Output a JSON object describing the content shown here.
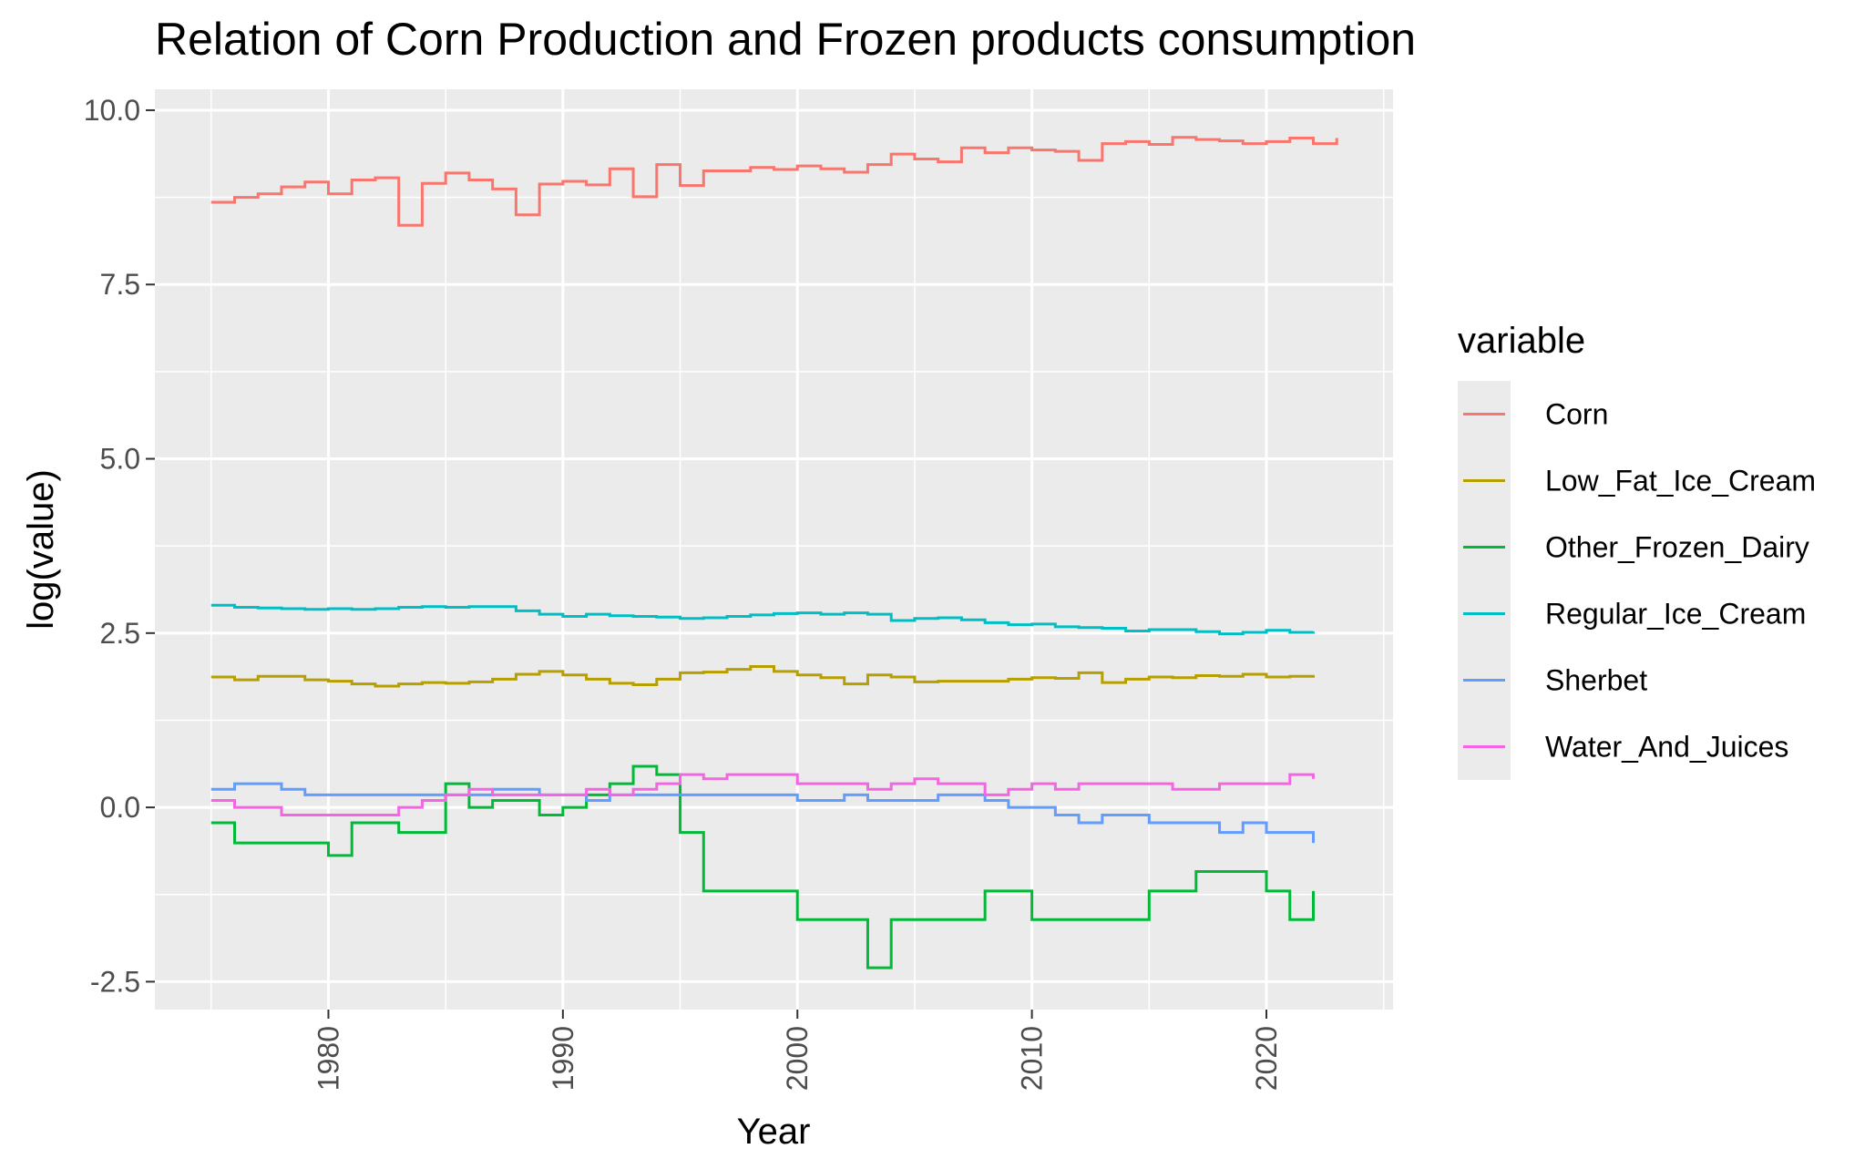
{
  "chart_data": {
    "type": "line",
    "step": true,
    "title": "Relation of Corn Production and Frozen products consumption",
    "xlabel": "Year",
    "ylabel": "log(value)",
    "xlim": [
      1972.6,
      2025.4
    ],
    "ylim": [
      -2.9,
      10.3
    ],
    "x_ticks": [
      1980,
      1990,
      2000,
      2010,
      2020
    ],
    "x_tick_labels": [
      "1980",
      "1990",
      "2000",
      "2010",
      "2020"
    ],
    "y_ticks": [
      10.0,
      7.5,
      5.0,
      2.5,
      0.0,
      -2.5
    ],
    "y_tick_labels": [
      "10.0",
      "7.5",
      "5.0",
      "2.5",
      "0.0",
      "-2.5"
    ],
    "grid": true,
    "legend_title": "variable",
    "legend_position": "right",
    "x": [
      1975,
      1976,
      1977,
      1978,
      1979,
      1980,
      1981,
      1982,
      1983,
      1984,
      1985,
      1986,
      1987,
      1988,
      1989,
      1990,
      1991,
      1992,
      1993,
      1994,
      1995,
      1996,
      1997,
      1998,
      1999,
      2000,
      2001,
      2002,
      2003,
      2004,
      2005,
      2006,
      2007,
      2008,
      2009,
      2010,
      2011,
      2012,
      2013,
      2014,
      2015,
      2016,
      2017,
      2018,
      2019,
      2020,
      2021,
      2022
    ],
    "series": [
      {
        "name": "Corn",
        "color": "#F8766D",
        "x": [
          1975,
          1976,
          1977,
          1978,
          1979,
          1980,
          1981,
          1982,
          1983,
          1984,
          1985,
          1986,
          1987,
          1988,
          1989,
          1990,
          1991,
          1992,
          1993,
          1994,
          1995,
          1996,
          1997,
          1998,
          1999,
          2000,
          2001,
          2002,
          2003,
          2004,
          2005,
          2006,
          2007,
          2008,
          2009,
          2010,
          2011,
          2012,
          2013,
          2014,
          2015,
          2016,
          2017,
          2018,
          2019,
          2020,
          2021,
          2022,
          2023
        ],
        "values": [
          8.68,
          8.75,
          8.8,
          8.9,
          8.97,
          8.8,
          9.0,
          9.03,
          8.35,
          8.95,
          9.1,
          9.0,
          8.87,
          8.5,
          8.94,
          8.98,
          8.93,
          9.16,
          8.76,
          9.22,
          8.92,
          9.13,
          9.13,
          9.18,
          9.15,
          9.2,
          9.16,
          9.11,
          9.22,
          9.37,
          9.3,
          9.26,
          9.46,
          9.39,
          9.46,
          9.43,
          9.41,
          9.28,
          9.52,
          9.55,
          9.51,
          9.61,
          9.58,
          9.56,
          9.52,
          9.55,
          9.6,
          9.52,
          9.6
        ]
      },
      {
        "name": "Low_Fat_Ice_Cream",
        "color": "#B79F00",
        "values": [
          1.87,
          1.83,
          1.88,
          1.88,
          1.83,
          1.81,
          1.77,
          1.74,
          1.77,
          1.79,
          1.78,
          1.8,
          1.84,
          1.91,
          1.95,
          1.9,
          1.84,
          1.78,
          1.76,
          1.84,
          1.93,
          1.94,
          1.98,
          2.02,
          1.95,
          1.9,
          1.86,
          1.77,
          1.9,
          1.87,
          1.8,
          1.81,
          1.81,
          1.81,
          1.84,
          1.86,
          1.85,
          1.93,
          1.79,
          1.84,
          1.87,
          1.86,
          1.89,
          1.88,
          1.91,
          1.87,
          1.88,
          1.86
        ]
      },
      {
        "name": "Other_Frozen_Dairy",
        "color": "#00BA38",
        "values": [
          -0.22,
          -0.51,
          -0.51,
          -0.51,
          -0.51,
          -0.69,
          -0.22,
          -0.22,
          -0.36,
          -0.36,
          0.34,
          0.0,
          0.1,
          0.1,
          -0.11,
          0.0,
          0.18,
          0.34,
          0.59,
          0.47,
          -0.36,
          -1.2,
          -1.2,
          -1.2,
          -1.2,
          -1.61,
          -1.61,
          -1.61,
          -2.3,
          -1.61,
          -1.61,
          -1.61,
          -1.61,
          -1.2,
          -1.2,
          -1.61,
          -1.61,
          -1.61,
          -1.61,
          -1.61,
          -1.2,
          -1.2,
          -0.92,
          -0.92,
          -0.92,
          -1.2,
          -1.61,
          -1.2
        ]
      },
      {
        "name": "Regular_Ice_Cream",
        "color": "#00BFC4",
        "values": [
          2.9,
          2.87,
          2.86,
          2.85,
          2.84,
          2.85,
          2.84,
          2.85,
          2.87,
          2.88,
          2.87,
          2.88,
          2.88,
          2.82,
          2.77,
          2.74,
          2.77,
          2.75,
          2.74,
          2.73,
          2.71,
          2.72,
          2.74,
          2.76,
          2.78,
          2.79,
          2.77,
          2.79,
          2.77,
          2.68,
          2.71,
          2.72,
          2.69,
          2.65,
          2.62,
          2.63,
          2.59,
          2.58,
          2.57,
          2.53,
          2.55,
          2.55,
          2.52,
          2.49,
          2.51,
          2.54,
          2.51,
          2.52
        ]
      },
      {
        "name": "Sherbet",
        "color": "#619CFF",
        "values": [
          0.26,
          0.34,
          0.34,
          0.26,
          0.18,
          0.18,
          0.18,
          0.18,
          0.18,
          0.18,
          0.18,
          0.18,
          0.26,
          0.26,
          0.18,
          0.18,
          0.1,
          0.18,
          0.18,
          0.18,
          0.18,
          0.18,
          0.18,
          0.18,
          0.18,
          0.1,
          0.1,
          0.18,
          0.1,
          0.1,
          0.1,
          0.18,
          0.18,
          0.1,
          0.0,
          0.0,
          -0.11,
          -0.22,
          -0.11,
          -0.11,
          -0.22,
          -0.22,
          -0.22,
          -0.36,
          -0.22,
          -0.36,
          -0.36,
          -0.51
        ]
      },
      {
        "name": "Water_And_Juices",
        "color": "#F564E3",
        "values": [
          0.1,
          0.0,
          0.0,
          -0.11,
          -0.11,
          -0.11,
          -0.11,
          -0.11,
          0.0,
          0.1,
          0.18,
          0.26,
          0.18,
          0.18,
          0.18,
          0.18,
          0.26,
          0.18,
          0.26,
          0.34,
          0.47,
          0.41,
          0.47,
          0.47,
          0.47,
          0.34,
          0.34,
          0.34,
          0.26,
          0.34,
          0.41,
          0.34,
          0.34,
          0.18,
          0.26,
          0.34,
          0.26,
          0.34,
          0.34,
          0.34,
          0.34,
          0.26,
          0.26,
          0.34,
          0.34,
          0.34,
          0.47,
          0.41
        ]
      }
    ]
  }
}
